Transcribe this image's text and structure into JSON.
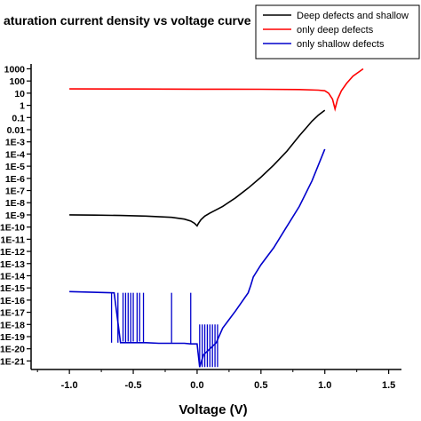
{
  "chart_data": {
    "type": "line",
    "title": "aturation current density vs voltage curve",
    "xlabel": "Voltage (V)",
    "ylabel": "",
    "y_scale": "log",
    "xlim": [
      -1.3,
      1.6
    ],
    "ylim_log10": [
      -21.7,
      3.4
    ],
    "x_ticks": [
      -1.0,
      -0.5,
      0.0,
      0.5,
      1.0,
      1.5
    ],
    "x_tick_labels": [
      "-1.0",
      "-0.5",
      "0.0",
      "0.5",
      "1.0",
      "1.5"
    ],
    "y_tick_labels": [
      "1000",
      "100",
      "10",
      "1",
      "0.1",
      "0.01",
      "1E-3",
      "1E-4",
      "1E-5",
      "1E-6",
      "1E-7",
      "1E-8",
      "1E-9",
      "1E-10",
      "1E-11",
      "1E-12",
      "1E-13",
      "1E-14",
      "1E-15",
      "1E-16",
      "1E-17",
      "1E-18",
      "1E-19",
      "1E-20",
      "1E-21"
    ],
    "grid": false,
    "legend_position": "top-right",
    "series": [
      {
        "name": "Deep defects and shallow",
        "color": "#000000",
        "x": [
          -1.0,
          -0.8,
          -0.6,
          -0.4,
          -0.2,
          -0.1,
          -0.05,
          -0.02,
          0.0,
          0.01,
          0.03,
          0.06,
          0.1,
          0.2,
          0.3,
          0.4,
          0.5,
          0.6,
          0.7,
          0.8,
          0.85,
          0.9,
          0.95,
          1.0
        ],
        "log10_y": [
          -9.0,
          -9.02,
          -9.05,
          -9.1,
          -9.2,
          -9.35,
          -9.5,
          -9.7,
          -9.9,
          -9.7,
          -9.4,
          -9.1,
          -8.85,
          -8.3,
          -7.6,
          -6.8,
          -5.9,
          -4.9,
          -3.8,
          -2.5,
          -1.9,
          -1.3,
          -0.8,
          -0.4
        ],
        "log10_y_labels": [
          "1E-9"
        ]
      },
      {
        "name": "only deep defects",
        "color": "#ff0000",
        "x": [
          -1.0,
          -0.5,
          0.0,
          0.5,
          0.8,
          0.95,
          1.0,
          1.03,
          1.06,
          1.08,
          1.1,
          1.13,
          1.17,
          1.22,
          1.3
        ],
        "log10_y": [
          1.35,
          1.34,
          1.33,
          1.32,
          1.3,
          1.25,
          1.2,
          1.0,
          0.5,
          -0.3,
          0.5,
          1.2,
          1.8,
          2.4,
          3.0
        ]
      },
      {
        "name": "only shallow defects",
        "color": "#0000cc",
        "x": [
          -1.0,
          -0.65,
          -0.6,
          -0.5,
          -0.4,
          -0.3,
          -0.2,
          -0.1,
          -0.05,
          0.0,
          0.02,
          0.05,
          0.1,
          0.15,
          0.2,
          0.3,
          0.4,
          0.42,
          0.44,
          0.5,
          0.6,
          0.7,
          0.8,
          0.9,
          1.0
        ],
        "log10_y": [
          -15.3,
          -15.4,
          -19.5,
          -19.5,
          -19.5,
          -19.55,
          -19.55,
          -19.55,
          -19.6,
          -19.6,
          -21.5,
          -20.5,
          -20.0,
          -19.5,
          -18.3,
          -16.9,
          -15.4,
          -14.8,
          -14.1,
          -13.1,
          -11.7,
          -10.0,
          -8.3,
          -6.2,
          -3.6
        ],
        "noise_spikes": [
          {
            "x": -0.67,
            "log10_y": -19.5
          },
          {
            "x": -0.62,
            "log10_y": -19.5
          },
          {
            "x": -0.58,
            "log10_y": -19.4
          },
          {
            "x": -0.56,
            "log10_y": -19.5
          },
          {
            "x": -0.54,
            "log10_y": -19.4
          },
          {
            "x": -0.52,
            "log10_y": -19.5
          },
          {
            "x": -0.5,
            "log10_y": -19.4
          },
          {
            "x": -0.47,
            "log10_y": -19.5
          },
          {
            "x": -0.45,
            "log10_y": -19.4
          },
          {
            "x": -0.42,
            "log10_y": -19.5
          },
          {
            "x": -0.2,
            "log10_y": -19.5
          },
          {
            "x": -0.05,
            "log10_y": -19.6
          },
          {
            "x": 0.02,
            "log10_y": -21.5
          },
          {
            "x": 0.04,
            "log10_y": -21.5
          },
          {
            "x": 0.06,
            "log10_y": -21.5
          },
          {
            "x": 0.08,
            "log10_y": -21.5
          },
          {
            "x": 0.1,
            "log10_y": -21.5
          },
          {
            "x": 0.12,
            "log10_y": -21.5
          },
          {
            "x": 0.14,
            "log10_y": -21.5
          },
          {
            "x": 0.16,
            "log10_y": -21.5
          }
        ]
      }
    ]
  }
}
